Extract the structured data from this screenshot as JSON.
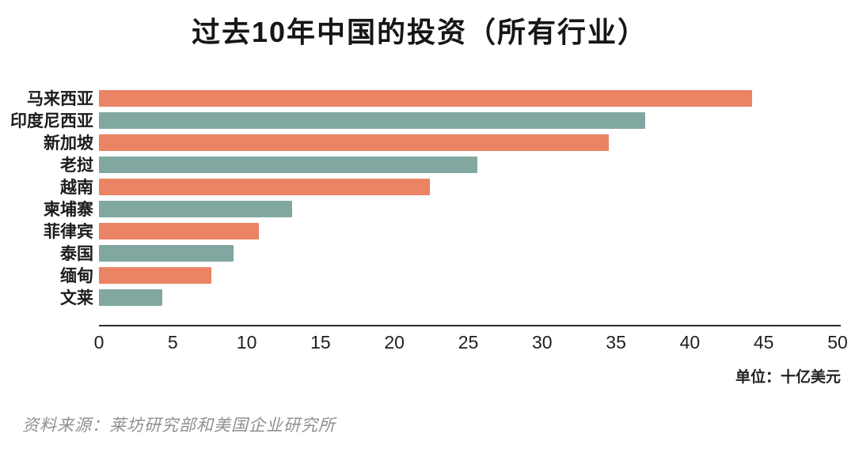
{
  "title": "过去10年中国的投资（所有行业）",
  "unit_note": "单位：十亿美元",
  "source_note": "资料来源：莱坊研究部和美国企业研究所",
  "colors": {
    "bar_orange": "#EA8465",
    "bar_teal": "#80A8A0",
    "axis": "#2b2b2b",
    "source_text": "#909090"
  },
  "chart_data": {
    "type": "bar",
    "orientation": "horizontal",
    "title": "过去10年中国的投资（所有行业）",
    "xlabel": "",
    "ylabel": "",
    "unit": "十亿美元",
    "xlim": [
      0,
      50
    ],
    "x_ticks": [
      0,
      5,
      10,
      15,
      20,
      25,
      30,
      35,
      40,
      45,
      50
    ],
    "grid": "off",
    "legend": "none",
    "categories": [
      "马来西亚",
      "印度尼西亚",
      "新加坡",
      "老挝",
      "越南",
      "柬埔寨",
      "菲律宾",
      "泰国",
      "缅甸",
      "文莱"
    ],
    "values": [
      44.2,
      37.0,
      34.5,
      25.6,
      22.4,
      13.1,
      10.8,
      9.1,
      7.6,
      4.3
    ],
    "bar_color_pattern": [
      "#EA8465",
      "#80A8A0"
    ]
  }
}
